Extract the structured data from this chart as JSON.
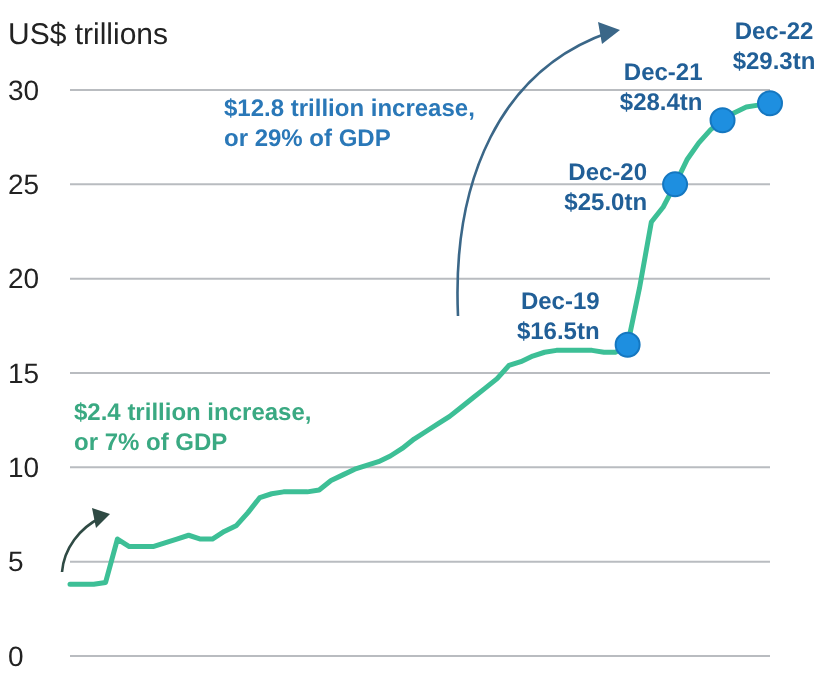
{
  "chart_data": {
    "type": "line",
    "ylabel": "US$ trillions",
    "categories": [
      null,
      null,
      null,
      null,
      null,
      null,
      null,
      null,
      null,
      null,
      null,
      null,
      null,
      null,
      null,
      null,
      null,
      null,
      null,
      null,
      null,
      null,
      null,
      null,
      null,
      null,
      null,
      null,
      null,
      null,
      null,
      null,
      null,
      null,
      null,
      null,
      null,
      null,
      null,
      null,
      null,
      null,
      null,
      null,
      null,
      null,
      null,
      null,
      null,
      null,
      null,
      null,
      null,
      null,
      null,
      null,
      null,
      null,
      null,
      null
    ],
    "series": [
      {
        "color": "#3dbf96",
        "values": [
          3.8,
          3.8,
          3.8,
          3.9,
          6.2,
          5.8,
          5.8,
          5.8,
          6.0,
          6.2,
          6.4,
          6.2,
          6.2,
          6.6,
          6.9,
          7.6,
          8.4,
          8.6,
          8.7,
          8.7,
          8.7,
          8.8,
          9.3,
          9.6,
          9.9,
          10.1,
          10.3,
          10.6,
          11.0,
          11.5,
          11.9,
          12.3,
          12.7,
          13.2,
          13.7,
          14.2,
          14.7,
          15.4,
          15.6,
          15.9,
          16.1,
          16.2,
          16.2,
          16.2,
          16.2,
          16.1,
          16.1,
          16.5,
          19.5,
          23.0,
          23.8,
          25.0,
          26.3,
          27.2,
          27.9,
          28.4,
          28.8,
          29.1,
          29.2,
          29.3
        ]
      },
      {
        "type": "scatter",
        "marker": "circle",
        "color": "#1e8fe0",
        "values": [
          null,
          null,
          null,
          null,
          null,
          null,
          null,
          null,
          null,
          null,
          null,
          null,
          null,
          null,
          null,
          null,
          null,
          null,
          null,
          null,
          null,
          null,
          null,
          null,
          null,
          null,
          null,
          null,
          null,
          null,
          null,
          null,
          null,
          null,
          null,
          null,
          null,
          null,
          null,
          null,
          null,
          null,
          null,
          null,
          null,
          null,
          null,
          16.5,
          null,
          null,
          null,
          25.0,
          null,
          null,
          null,
          28.4,
          null,
          null,
          null,
          29.3
        ]
      }
    ],
    "ylim": [
      0,
      30
    ],
    "yticks": [
      0,
      5,
      10,
      15,
      20,
      25,
      30
    ],
    "grid": "y",
    "annotations": [
      "Dec-19\n$16.5tn",
      "Dec-20\n$25.0tn",
      "Dec-21\n$28.4tn",
      "Dec-22\n$29.3tn",
      "$12.8 trillion increase,\nor 29% of GDP",
      "$2.4 trillion increase,\nor 7% of GDP"
    ]
  }
}
